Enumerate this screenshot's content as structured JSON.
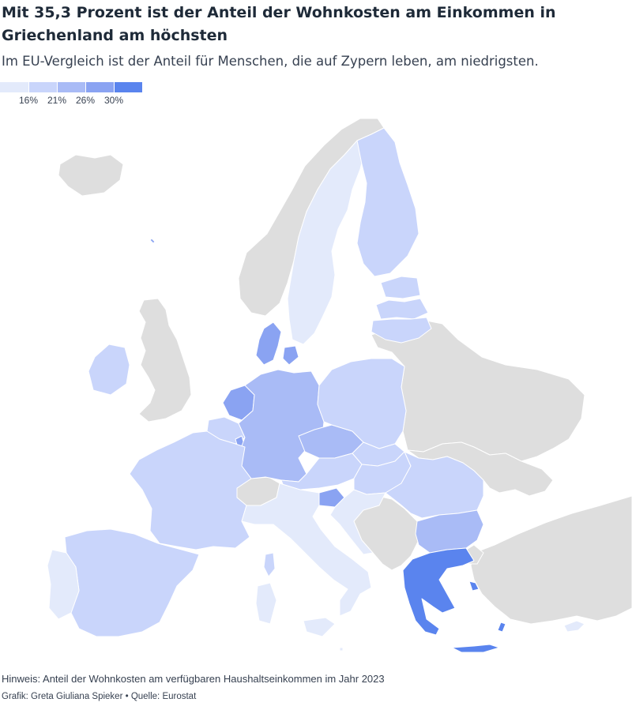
{
  "header": {
    "title": "Mit 35,3 Prozent ist der Anteil der Wohnkosten am Einkommen in Griechenland am höchsten",
    "subtitle": "Im EU-Vergleich ist der Anteil für Menschen, die auf Zypern leben, am niedrigsten."
  },
  "legend": {
    "labels": [
      "16%",
      "21%",
      "26%",
      "30%"
    ],
    "colors": [
      "#e3eafb",
      "#c9d5fb",
      "#a9bbf6",
      "#8aa3f2",
      "#5a84ee"
    ]
  },
  "colors": {
    "non_eu": "#dedede",
    "border": "#ffffff"
  },
  "footer": {
    "note": "Hinweis: Anteil der Wohnkosten am verfügbaren Haushaltseinkommen im Jahr 2023",
    "credit": "Grafik: Greta Giuliana Spieker • Quelle: Eurostat"
  }
}
